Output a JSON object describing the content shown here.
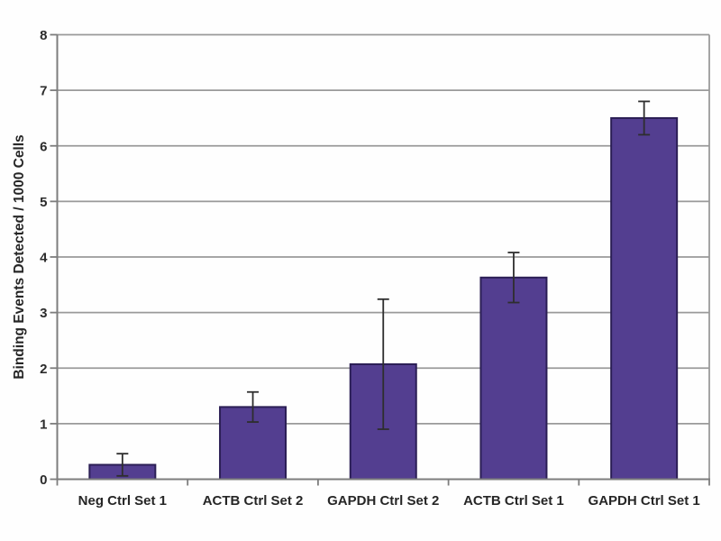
{
  "figure": {
    "background_color": "#ffffff",
    "kind": "bar chart with error bars"
  },
  "chart_data": {
    "type": "bar",
    "title": "",
    "xlabel": "",
    "ylabel": "Binding Events Detected / 1000 Cells",
    "categories": [
      "Neg Ctrl Set 1",
      "ACTB Ctrl Set 2",
      "GAPDH Ctrl Set 2",
      "ACTB Ctrl Set 1",
      "GAPDH Ctrl Set 1"
    ],
    "values": [
      0.26,
      1.3,
      2.07,
      3.63,
      6.5
    ],
    "errors": [
      0.2,
      0.27,
      1.17,
      0.45,
      0.3
    ],
    "ylim": [
      0,
      8
    ],
    "yticks": [
      0,
      1,
      2,
      3,
      4,
      5,
      6,
      7,
      8
    ],
    "grid": "horizontal",
    "legend": "none",
    "bar_color": "#533e90",
    "bar_border_color": "#2b1e55",
    "error_bar_color": "#2e2e2e",
    "gridline_color": "#9a9a9a",
    "axis_color": "#7d7d7d",
    "text_color": "#262626"
  }
}
